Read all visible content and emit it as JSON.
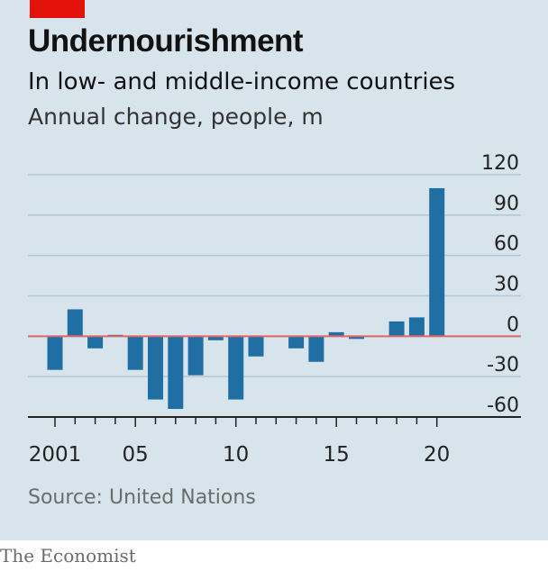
{
  "header": {
    "title": "Undernourishment",
    "subtitle": "In low- and middle-income countries",
    "unit": "Annual change, people, m"
  },
  "footer": {
    "source": "Source: United Nations",
    "brand": "The Economist"
  },
  "colors": {
    "background": "#d7e4ec",
    "bar": "#1f6fa5",
    "zero_line": "#e06666",
    "grid": "#b4c6d3",
    "accent": "#e3120b"
  },
  "chart_data": {
    "type": "bar",
    "title": "Undernourishment",
    "subtitle": "In low- and middle-income countries",
    "ylabel": "Annual change, people, m",
    "categories": [
      2001,
      2002,
      2003,
      2004,
      2005,
      2006,
      2007,
      2008,
      2009,
      2010,
      2011,
      2012,
      2013,
      2014,
      2015,
      2016,
      2017,
      2018,
      2019,
      2020
    ],
    "values": [
      -25,
      20,
      -9,
      1,
      -25,
      -47,
      -54,
      -29,
      -3,
      -47,
      -15,
      0,
      -9,
      -19,
      3,
      -2,
      0,
      11,
      14,
      110
    ],
    "x_tick_labels": [
      {
        "year": 2001,
        "label": "2001"
      },
      {
        "year": 2005,
        "label": "05"
      },
      {
        "year": 2010,
        "label": "10"
      },
      {
        "year": 2015,
        "label": "15"
      },
      {
        "year": 2020,
        "label": "20"
      }
    ],
    "y_ticks": [
      120,
      90,
      60,
      30,
      0,
      -30,
      -60
    ],
    "y_tick_labels": [
      "120",
      "90",
      "60",
      "30",
      "0",
      "-30",
      "-60"
    ],
    "ylim": [
      -60,
      120
    ],
    "grid": true,
    "y_axis_side": "right"
  }
}
